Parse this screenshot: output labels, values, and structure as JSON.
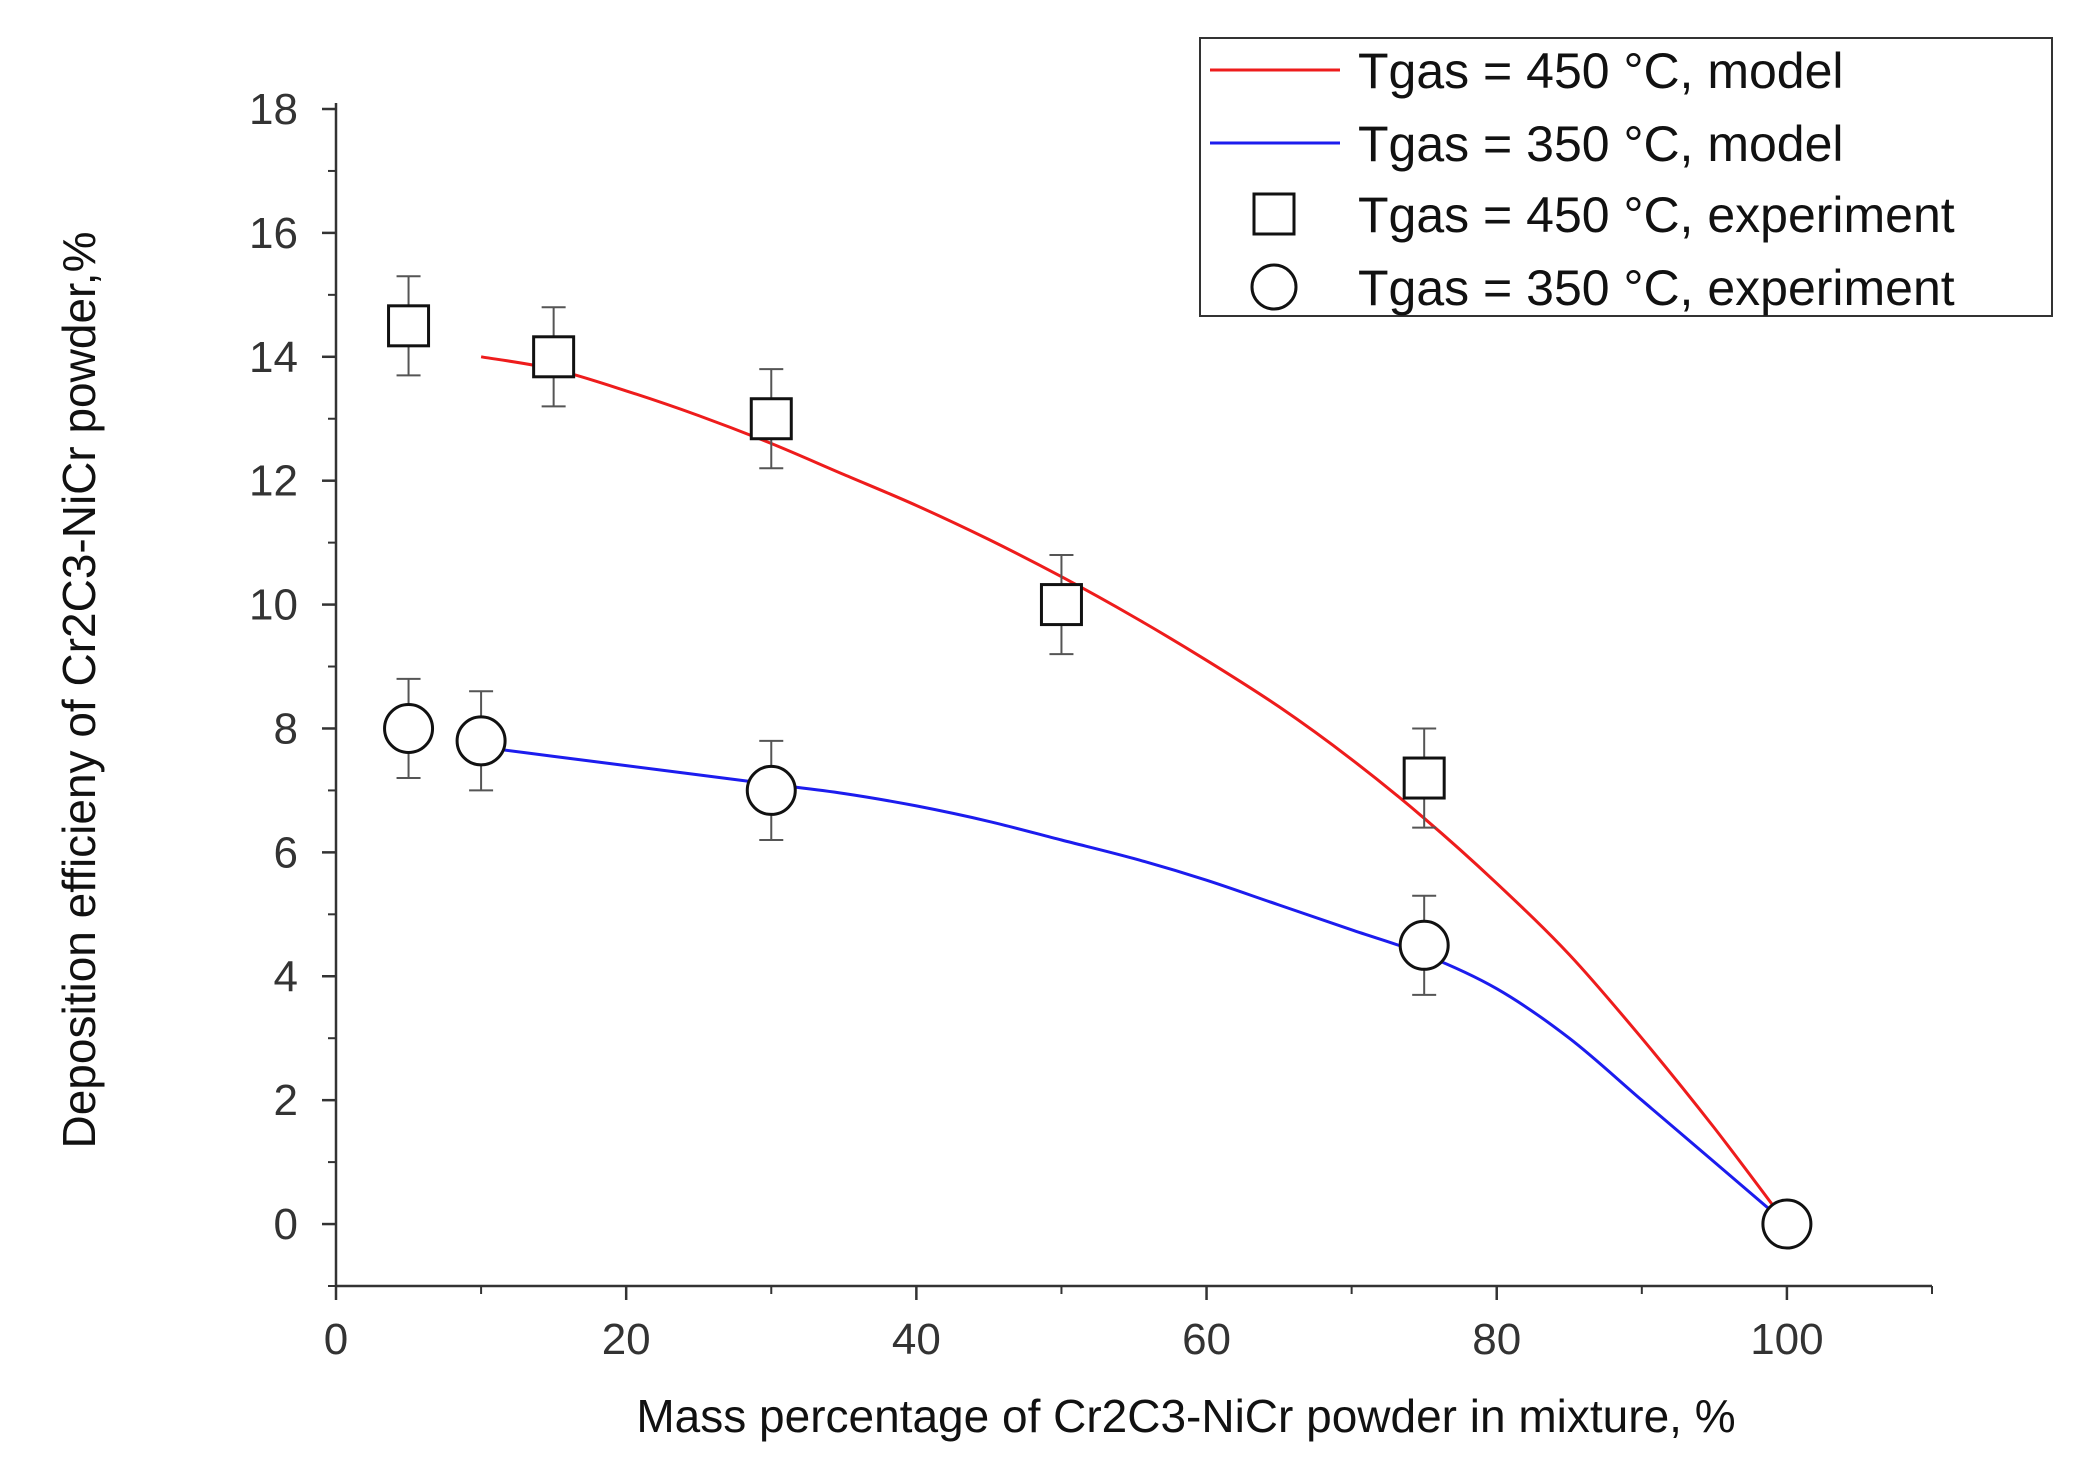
{
  "chart_data": {
    "type": "scatter",
    "title": "",
    "xlabel": "Mass percentage of Cr2C3-NiCr powder in mixture, %",
    "ylabel": "Deposition efficieny of Cr2C3-NiCr powder,%",
    "xlim": [
      0,
      110
    ],
    "ylim": [
      -1,
      18
    ],
    "x_ticks": [
      0,
      20,
      40,
      60,
      80,
      100
    ],
    "x_tick_labels": [
      "0",
      "20",
      "40",
      "60",
      "80",
      "100"
    ],
    "x_minor_ticks": [
      10,
      30,
      50,
      70,
      90,
      110
    ],
    "y_ticks": [
      0,
      2,
      4,
      6,
      8,
      10,
      12,
      14,
      16,
      18
    ],
    "y_tick_labels": [
      "0",
      "2",
      "4",
      "6",
      "8",
      "10",
      "12",
      "14",
      "16",
      "18"
    ],
    "y_minor_ticks": [
      -1,
      1,
      3,
      5,
      7,
      9,
      11,
      13,
      15,
      17
    ],
    "grid": false,
    "legend_position": "top-right",
    "series": [
      {
        "name": "Tgas = 450 °C, model",
        "kind": "line",
        "color": "#ee1c1c",
        "x": [
          10,
          15,
          20,
          25,
          30,
          35,
          40,
          45,
          50,
          55,
          60,
          65,
          70,
          75,
          80,
          85,
          90,
          95,
          100
        ],
        "y": [
          14.0,
          13.8,
          13.45,
          13.05,
          12.6,
          12.1,
          11.6,
          11.05,
          10.45,
          9.8,
          9.1,
          8.35,
          7.5,
          6.55,
          5.5,
          4.35,
          3.0,
          1.55,
          0.0
        ]
      },
      {
        "name": "Tgas = 350 °C, model",
        "kind": "line",
        "color": "#1c1cee",
        "x": [
          10,
          15,
          20,
          25,
          30,
          35,
          40,
          45,
          50,
          55,
          60,
          65,
          70,
          75,
          80,
          85,
          90,
          95,
          100
        ],
        "y": [
          7.7,
          7.55,
          7.4,
          7.25,
          7.1,
          6.95,
          6.75,
          6.5,
          6.2,
          5.9,
          5.55,
          5.15,
          4.75,
          4.35,
          3.8,
          3.0,
          2.0,
          1.0,
          0.0
        ]
      },
      {
        "name": "Tgas = 450 °C, experiment",
        "kind": "marker",
        "marker": "square",
        "x": [
          5,
          15,
          30,
          50,
          75
        ],
        "y": [
          14.5,
          14.0,
          13.0,
          10.0,
          7.2
        ],
        "error": [
          0.8,
          0.8,
          0.8,
          0.8,
          0.8
        ]
      },
      {
        "name": "Tgas = 350 °C, experiment",
        "kind": "marker",
        "marker": "circle",
        "x": [
          5,
          10,
          30,
          75,
          100
        ],
        "y": [
          8.0,
          7.8,
          7.0,
          4.5,
          0.0
        ],
        "error": [
          0.8,
          0.8,
          0.8,
          0.8,
          0.0
        ]
      }
    ]
  }
}
